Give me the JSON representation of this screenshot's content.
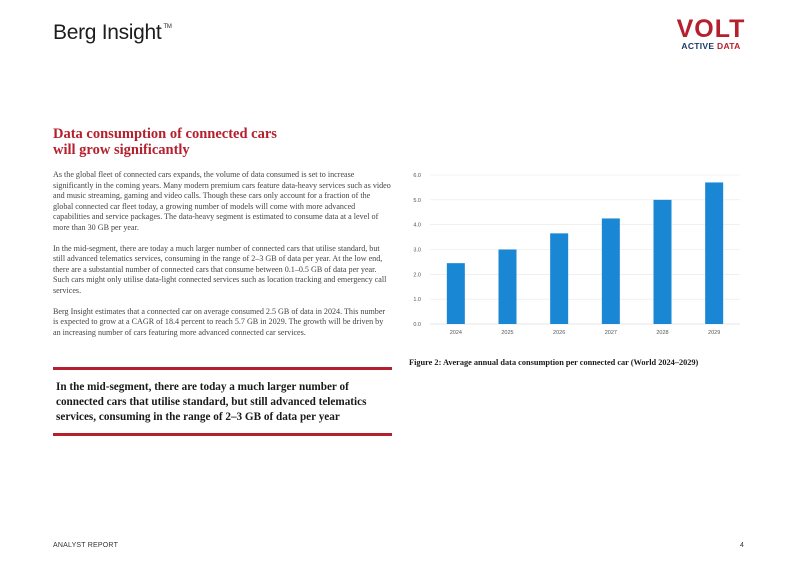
{
  "header": {
    "berg_logo_text": "Berg Insight",
    "berg_logo_tm": "TM",
    "volt_word": "VOLT",
    "volt_sub_active": "ACTIVE",
    "volt_sub_data": "DATA"
  },
  "article": {
    "title_line1": "Data consumption of connected cars",
    "title_line2": "will grow significantly",
    "paragraphs": [
      "As the global fleet of connected cars expands, the volume of data consumed is set to increase significantly in the coming years. Many modern premium cars feature data-heavy services such as video and music streaming, gaming and video calls. Though these cars only account for a fraction of the global connected car fleet today, a growing number of models will come with more advanced capabilities and service packages. The data-heavy segment is estimated to consume data at a level of more than 30 GB per year.",
      "In the mid-segment, there are today a much larger number of connected cars that utilise standard, but still advanced telematics services, consuming in the range of 2–3 GB of data per year. At the low end, there are a substantial number of connected cars that consume between 0.1–0.5 GB of data per year. Such cars might only utilise data-light connected services such as location tracking and emergency call services.",
      "Berg Insight estimates that a connected car on average consumed 2.5 GB of data in 2024. This number is expected to grow at a CAGR of 18.4 percent to reach 5.7 GB in 2029. The growth will be driven by an increasing number of cars featuring more advanced connected car services."
    ],
    "pull_quote": "In the mid-segment, there are today a much larger number of connected cars that utilise standard, but still advanced telematics services, consuming in the range of 2–3 GB of data per year"
  },
  "chart_data": {
    "type": "bar",
    "categories": [
      "2024",
      "2025",
      "2026",
      "2027",
      "2028",
      "2029"
    ],
    "values": [
      2.45,
      3.0,
      3.65,
      4.25,
      5.0,
      5.7
    ],
    "y_ticks": [
      "0.0",
      "1.0",
      "2.0",
      "3.0",
      "4.0",
      "5.0",
      "6.0"
    ],
    "ylim": [
      0,
      6
    ],
    "grid": true,
    "bar_color": "#1a87d4"
  },
  "figure": {
    "caption": "Figure 2: Average annual data consumption per connected car (World 2024–2029)"
  },
  "footer": {
    "left": "ANALYST REPORT",
    "page_number": "4"
  },
  "colors": {
    "accent_red": "#b5202e",
    "navy": "#1d3a6b"
  }
}
